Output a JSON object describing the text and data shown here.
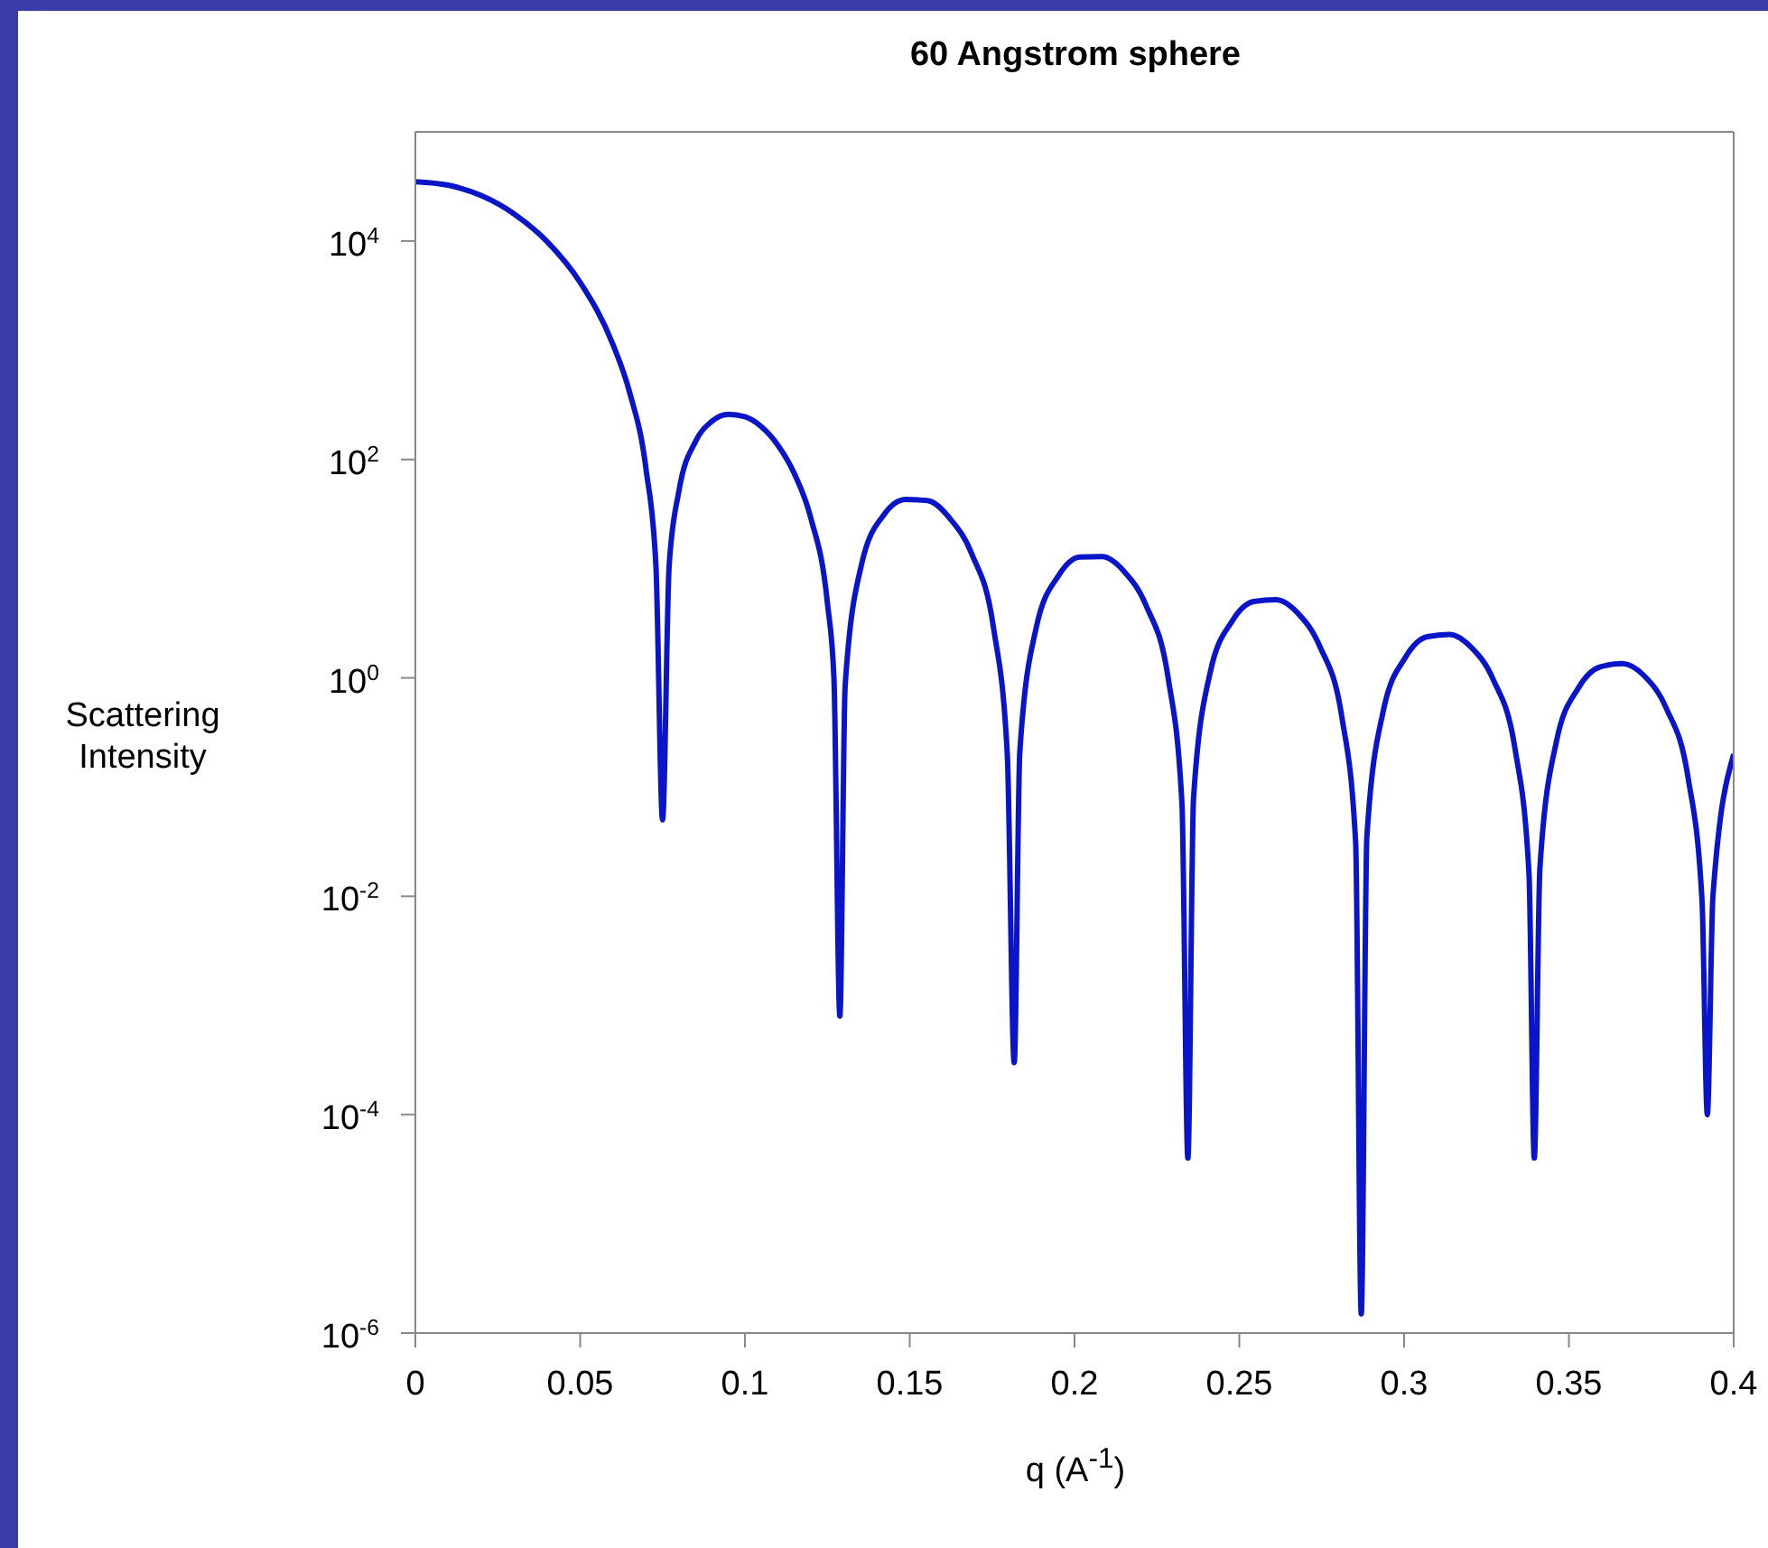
{
  "chart_data": {
    "type": "line",
    "title": "60 Angstrom sphere",
    "xlabel": "q (A$^{-1}$)",
    "ylabel": "Scattering Intensity",
    "log": "y",
    "xlim": [
      0,
      0.4
    ],
    "xticks": [
      0,
      0.05,
      0.1,
      0.15,
      0.2,
      0.25,
      0.3,
      0.35,
      0.4
    ],
    "ylim": [
      1e-06,
      100000
    ],
    "yticks": [
      {
        "value": 1e-06,
        "label": "10$^{-6}$"
      },
      {
        "value": 0.0001,
        "label": "10$^{-4}$"
      },
      {
        "value": 0.01,
        "label": "10$^{-2}$"
      },
      {
        "value": 1,
        "label": "10$^{0}$"
      },
      {
        "value": 100,
        "label": "10$^{2}$"
      },
      {
        "value": 10000,
        "label": "10$^{4}$"
      }
    ],
    "marker": "none",
    "line_style": "solid",
    "series": [
      {
        "color": "#0a14c8",
        "x": [
          0,
          0.01,
          0.02,
          0.03,
          0.04,
          0.05,
          0.06,
          0.065,
          0.07,
          0.073,
          0.075,
          0.077,
          0.08,
          0.085,
          0.09,
          0.095,
          0.1,
          0.105,
          0.11,
          0.115,
          0.12,
          0.125,
          0.127,
          0.1288,
          0.1304,
          0.1354,
          0.1421,
          0.1488,
          0.1554,
          0.1621,
          0.1688,
          0.1754,
          0.1796,
          0.1817,
          0.1834,
          0.1884,
          0.1951,
          0.2017,
          0.2084,
          0.2151,
          0.2217,
          0.2284,
          0.2326,
          0.2344,
          0.2361,
          0.2411,
          0.2478,
          0.2544,
          0.2611,
          0.2678,
          0.2744,
          0.2811,
          0.2853,
          0.287,
          0.2887,
          0.2937,
          0.3004,
          0.307,
          0.3137,
          0.3204,
          0.327,
          0.3337,
          0.3379,
          0.3395,
          0.3412,
          0.3462,
          0.3529,
          0.3595,
          0.3662,
          0.3729,
          0.3795,
          0.3862,
          0.3904,
          0.392,
          0.3937,
          0.4
        ],
        "values": [
          35000,
          32500,
          26100,
          17700,
          9860,
          4180,
          1120,
          412,
          81,
          10.4,
          0.05,
          10.6,
          52,
          146,
          224,
          259,
          246,
          199,
          135,
          74,
          29,
          4.9,
          1.0,
          0.0008,
          0.84,
          11,
          31,
          43,
          42,
          29,
          13.7,
          2.9,
          0.2,
          0.0003,
          0.21,
          2.9,
          8.6,
          12.8,
          12.9,
          9.4,
          4.6,
          1.0,
          0.07,
          4e-05,
          0.078,
          1.1,
          3.3,
          5.0,
          5.2,
          3.9,
          1.95,
          0.44,
          0.031,
          1.5e-06,
          0.035,
          0.5,
          1.54,
          2.38,
          2.5,
          1.9,
          0.97,
          0.22,
          0.016,
          4e-05,
          0.018,
          0.26,
          0.81,
          1.26,
          1.35,
          1.04,
          0.53,
          0.12,
          0.009,
          0.0001,
          0.01,
          0.2
        ]
      }
    ]
  }
}
